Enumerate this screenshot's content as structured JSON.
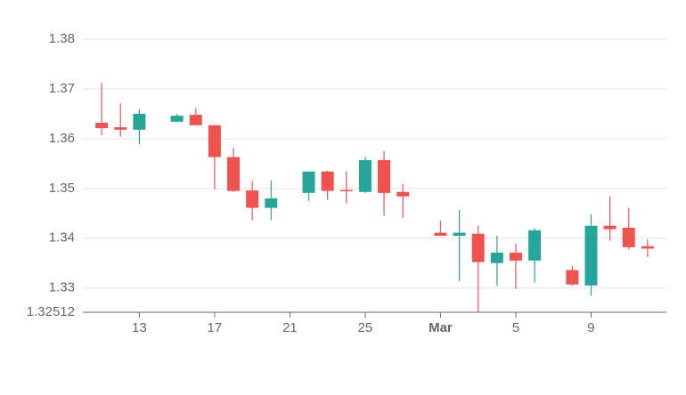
{
  "chart_data": {
    "type": "candlestick",
    "x": [
      "02-11",
      "02-12",
      "02-13",
      "02-15",
      "02-16",
      "02-17",
      "02-18",
      "02-19",
      "02-20",
      "02-22",
      "02-23",
      "02-24",
      "02-25",
      "02-26",
      "02-27",
      "03-01",
      "03-02",
      "03-03",
      "03-04",
      "03-05",
      "03-06",
      "03-08",
      "03-09",
      "03-10",
      "03-11",
      "03-12"
    ],
    "open": [
      1.3632,
      1.3623,
      1.3618,
      1.3634,
      1.3648,
      1.3627,
      1.3563,
      1.3496,
      1.3461,
      1.3491,
      1.3534,
      1.3497,
      1.3493,
      1.3557,
      1.3493,
      1.3411,
      1.3405,
      1.3409,
      1.335,
      1.3371,
      1.3355,
      1.3336,
      1.3305,
      1.3425,
      1.3421,
      1.3384
    ],
    "high": [
      1.3712,
      1.3671,
      1.3659,
      1.365,
      1.3661,
      1.3627,
      1.3582,
      1.3516,
      1.3516,
      1.3534,
      1.3536,
      1.3534,
      1.3564,
      1.3575,
      1.3509,
      1.3436,
      1.3457,
      1.3425,
      1.3405,
      1.3389,
      1.342,
      1.3345,
      1.3448,
      1.3484,
      1.3461,
      1.3398
    ],
    "low": [
      1.3607,
      1.3604,
      1.3589,
      1.3634,
      1.3627,
      1.3498,
      1.3493,
      1.3436,
      1.3436,
      1.3475,
      1.3477,
      1.347,
      1.3491,
      1.3445,
      1.3441,
      1.3405,
      1.3314,
      1.3252,
      1.3304,
      1.3298,
      1.3311,
      1.3304,
      1.3284,
      1.3395,
      1.3377,
      1.3362
    ],
    "close": [
      1.3621,
      1.3618,
      1.365,
      1.3646,
      1.3627,
      1.3563,
      1.3495,
      1.3461,
      1.348,
      1.3534,
      1.3495,
      1.3495,
      1.3557,
      1.3491,
      1.3484,
      1.3405,
      1.3411,
      1.3352,
      1.3371,
      1.3355,
      1.3416,
      1.3307,
      1.3425,
      1.3418,
      1.3382,
      1.3379
    ],
    "up_color": "#26a69a",
    "down_color": "#ef5350",
    "xlim": [
      "02-10",
      "03-13"
    ],
    "xticks": [
      {
        "value": "02-13",
        "label": "13"
      },
      {
        "value": "02-17",
        "label": "17"
      },
      {
        "value": "02-21",
        "label": "21"
      },
      {
        "value": "02-25",
        "label": "25"
      },
      {
        "value": "03-01",
        "label": "Mar"
      },
      {
        "value": "03-05",
        "label": "5"
      },
      {
        "value": "03-09",
        "label": "9"
      }
    ],
    "ylim": [
      1.32512,
      1.38
    ],
    "yticks": [
      1.32512,
      1.33,
      1.34,
      1.35,
      1.36,
      1.37,
      1.38
    ],
    "grid": true
  }
}
